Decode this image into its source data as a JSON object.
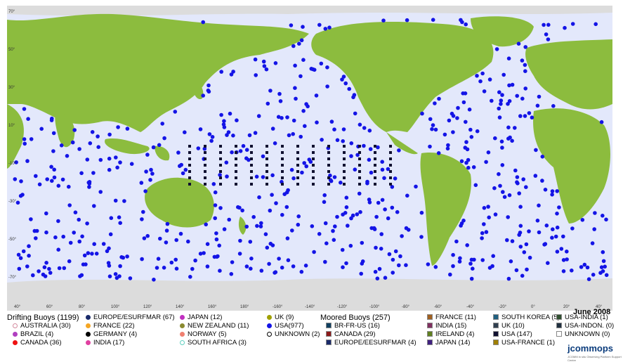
{
  "map": {
    "date": "June 2008",
    "lat_labels": [
      "70°",
      "50°",
      "30°",
      "10°",
      "-10°",
      "-30°",
      "-50°",
      "-70°"
    ],
    "lon_labels": [
      "40°",
      "60°",
      "80°",
      "100°",
      "120°",
      "140°",
      "160°",
      "180°",
      "-160°",
      "-140°",
      "-120°",
      "-100°",
      "-80°",
      "-60°",
      "-40°",
      "-20°",
      "0°",
      "20°",
      "40°"
    ],
    "colors": {
      "ocean": "#e3e8fb",
      "land": "#8cbc3e",
      "ice": "#dcdcdc",
      "buoy_blue": "#1414e6"
    }
  },
  "legend": {
    "drifting_title": "Drifting Buoys (1199)",
    "moored_title": "Moored Buoys (257)",
    "drifting": [
      {
        "label": "AUSTRALIA (30)",
        "color": "#d48a9e",
        "shape": "ring"
      },
      {
        "label": "BRAZIL (4)",
        "color": "#b040c0",
        "shape": "dot"
      },
      {
        "label": "CANADA (36)",
        "color": "#ee1111",
        "shape": "dot"
      },
      {
        "label": "EUROPE/ESURFMAR (67)",
        "color": "#1a2a6a",
        "shape": "dot"
      },
      {
        "label": "FRANCE (22)",
        "color": "#f5a623",
        "shape": "dot"
      },
      {
        "label": "GERMANY (4)",
        "color": "#000000",
        "shape": "dot"
      },
      {
        "label": "INDIA (17)",
        "color": "#e040a0",
        "shape": "dot"
      },
      {
        "label": "JAPAN (12)",
        "color": "#c030c0",
        "shape": "dot"
      },
      {
        "label": "NEW ZEALAND (11)",
        "color": "#8a8a30",
        "shape": "dot"
      },
      {
        "label": "NORWAY (5)",
        "color": "#f08070",
        "shape": "dot"
      },
      {
        "label": "SOUTH AFRICA (3)",
        "color": "#60d0c0",
        "shape": "ring"
      },
      {
        "label": "UK (9)",
        "color": "#a0a000",
        "shape": "dot"
      },
      {
        "label": "USA(977)",
        "color": "#1414e6",
        "shape": "dot"
      },
      {
        "label": "UNKNOWN (2)",
        "color": "#000000",
        "shape": "ring"
      }
    ],
    "moored": [
      {
        "label": "BR-FR-US (16)",
        "color": "#104060",
        "shape": "sq"
      },
      {
        "label": "CANADA (29)",
        "color": "#8b1a1a",
        "shape": "sq"
      },
      {
        "label": "EUROPE/EESURFMAR (4)",
        "color": "#1a2a6a",
        "shape": "sq"
      },
      {
        "label": "FRANCE (11)",
        "color": "#a06020",
        "shape": "sq"
      },
      {
        "label": "INDIA (15)",
        "color": "#803060",
        "shape": "sq"
      },
      {
        "label": "IRELAND (4)",
        "color": "#608020",
        "shape": "sq"
      },
      {
        "label": "JAPAN (14)",
        "color": "#402080",
        "shape": "sq"
      },
      {
        "label": "SOUTH KOREA (5)",
        "color": "#206080",
        "shape": "sq"
      },
      {
        "label": "UK (10)",
        "color": "#304050",
        "shape": "sq"
      },
      {
        "label": "USA (147)",
        "color": "#101030",
        "shape": "sq"
      },
      {
        "label": "USA-FRANCE (1)",
        "color": "#a08000",
        "shape": "sq"
      },
      {
        "label": "USA-INDIA (1)",
        "color": "#305030",
        "shape": "sq"
      },
      {
        "label": "USA-INDON. (0)",
        "color": "#203040",
        "shape": "sq"
      },
      {
        "label": "UNKNOWN (0)",
        "color": "#ffffff",
        "shape": "sq"
      }
    ]
  },
  "logo": {
    "text": "jcommops",
    "subtitle": "JCOMM in situ Observing Platform Support Centre"
  }
}
